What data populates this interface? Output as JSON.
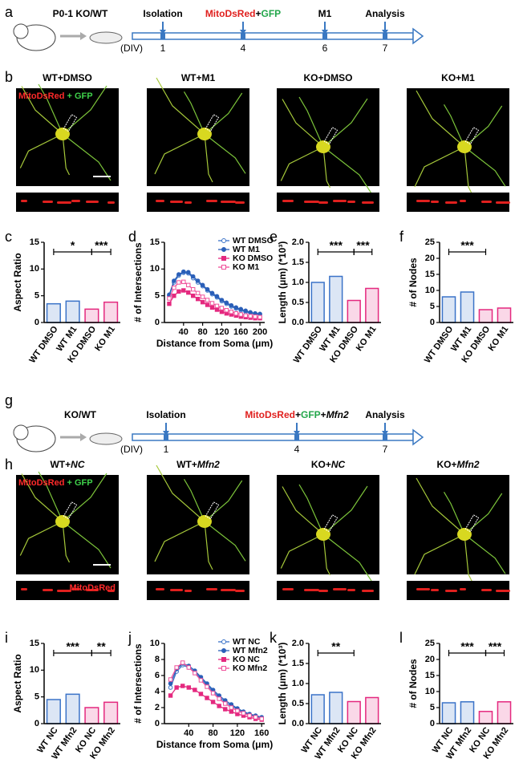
{
  "panel_labels": [
    "a",
    "b",
    "c",
    "d",
    "e",
    "f",
    "g",
    "h",
    "i",
    "j",
    "k",
    "l"
  ],
  "timeline_a": {
    "animal": "P0-1 KO/WT",
    "unit": "(DIV)",
    "events": [
      {
        "parts": [
          {
            "text": "Isolation",
            "color": "#000000"
          }
        ],
        "day": "1"
      },
      {
        "parts": [
          {
            "text": "MitoDsRed",
            "color": "#e0201e"
          },
          {
            "text": "+",
            "color": "#000000"
          },
          {
            "text": "GFP",
            "color": "#22a64a"
          }
        ],
        "day": "4"
      },
      {
        "parts": [
          {
            "text": "M1",
            "color": "#000000"
          }
        ],
        "day": "6"
      },
      {
        "parts": [
          {
            "text": "Analysis",
            "color": "#000000"
          }
        ],
        "day": "7"
      }
    ]
  },
  "timeline_g": {
    "animal": "KO/WT",
    "unit": "(DIV)",
    "events": [
      {
        "parts": [
          {
            "text": "Isolation",
            "color": "#000000"
          }
        ],
        "day": "1"
      },
      {
        "parts": [
          {
            "text": "MitoDsRed",
            "color": "#e0201e"
          },
          {
            "text": "+",
            "color": "#000000"
          },
          {
            "text": "GFP",
            "color": "#22a64a"
          },
          {
            "text": "+",
            "color": "#000000"
          },
          {
            "text": "Mfn2",
            "color": "#000000",
            "italic": true
          }
        ],
        "day": "4"
      },
      {
        "parts": [
          {
            "text": "Analysis",
            "color": "#000000"
          }
        ],
        "day": "7"
      }
    ]
  },
  "images_b": {
    "conditions": [
      [
        {
          "text": "WT+DMSO"
        }
      ],
      [
        {
          "text": "WT+M1"
        }
      ],
      [
        {
          "text": "KO+DMSO"
        }
      ],
      [
        {
          "text": "KO+M1"
        }
      ]
    ],
    "overlay": [
      {
        "text": "MitoDsRed",
        "color": "#ff2a2a"
      },
      {
        "text": " + GFP",
        "color": "#3fd14a"
      }
    ]
  },
  "images_h": {
    "conditions": [
      [
        {
          "text": "WT+"
        },
        {
          "text": "NC",
          "italic": true
        }
      ],
      [
        {
          "text": "WT+"
        },
        {
          "text": "Mfn2",
          "italic": true
        }
      ],
      [
        {
          "text": "KO+"
        },
        {
          "text": "NC",
          "italic": true
        }
      ],
      [
        {
          "text": "KO+"
        },
        {
          "text": "Mfn2",
          "italic": true
        }
      ]
    ],
    "overlay": [
      {
        "text": "MitoDsRed",
        "color": "#ff2a2a"
      },
      {
        "text": " + GFP",
        "color": "#3fd14a"
      }
    ],
    "strip_label": "MitoDsRed"
  },
  "chart_data": [
    {
      "type": "bar",
      "ylabel": "Aspect Ratio",
      "categories": [
        "WT DMSO",
        "WT M1",
        "KO DMSO",
        "KO M1"
      ],
      "values": [
        3.5,
        4.0,
        2.5,
        3.8
      ],
      "colors": [
        "#3b73c8",
        "#3b73c8",
        "#e4297f",
        "#e4297f"
      ],
      "ylim": [
        0,
        15
      ],
      "yticks": [
        0,
        5,
        10,
        15
      ],
      "significance": [
        {
          "from": 0,
          "to": 2,
          "label": "*"
        },
        {
          "from": 2,
          "to": 3,
          "label": "***"
        }
      ]
    },
    {
      "type": "line",
      "ylabel": "# of Intersections",
      "xlabel": "Distance from Soma (μm)",
      "x": [
        10,
        20,
        30,
        40,
        50,
        60,
        70,
        80,
        90,
        100,
        110,
        120,
        130,
        140,
        150,
        160,
        170,
        180,
        190,
        200
      ],
      "xlim": [
        0,
        210
      ],
      "xticks": [
        40,
        80,
        120,
        160,
        200
      ],
      "ylim": [
        0,
        15
      ],
      "yticks": [
        0,
        5,
        10,
        15
      ],
      "series": [
        {
          "name": "WT DMSO",
          "color": "#3b73c8",
          "values": [
            5.0,
            7.5,
            8.8,
            9.3,
            9.2,
            8.3,
            7.5,
            6.8,
            6.0,
            5.3,
            4.7,
            4.0,
            3.5,
            3.0,
            2.6,
            2.3,
            2.0,
            1.8,
            1.6,
            1.5
          ]
        },
        {
          "name": "WT M1",
          "color": "#2a5fb8",
          "values": [
            5.2,
            7.8,
            9.0,
            9.5,
            9.4,
            8.6,
            7.8,
            7.0,
            6.2,
            5.5,
            4.9,
            4.2,
            3.7,
            3.2,
            2.8,
            2.5,
            2.2,
            1.9,
            1.7,
            1.6
          ]
        },
        {
          "name": "KO DMSO",
          "color": "#e4297f",
          "values": [
            3.5,
            5.0,
            5.8,
            6.0,
            5.6,
            5.0,
            4.4,
            3.8,
            3.3,
            2.8,
            2.4,
            2.0,
            1.7,
            1.5,
            1.3,
            1.1,
            1.0,
            0.9,
            0.8,
            0.8
          ]
        },
        {
          "name": "KO M1",
          "color": "#f0509a",
          "values": [
            4.5,
            6.5,
            7.5,
            7.6,
            7.0,
            6.2,
            5.5,
            4.8,
            4.2,
            3.6,
            3.1,
            2.7,
            2.3,
            2.0,
            1.7,
            1.5,
            1.3,
            1.2,
            1.1,
            1.0
          ]
        }
      ]
    },
    {
      "type": "bar",
      "ylabel": "Length (μm) (*10³)",
      "categories": [
        "WT DMSO",
        "WT M1",
        "KO DMSO",
        "KO M1"
      ],
      "values": [
        1.0,
        1.15,
        0.55,
        0.85
      ],
      "colors": [
        "#3b73c8",
        "#3b73c8",
        "#e4297f",
        "#e4297f"
      ],
      "ylim": [
        0,
        2
      ],
      "yticks": [
        {
          "value": 0,
          "label": "0.0"
        },
        0.5,
        {
          "value": 1,
          "label": "1.0"
        },
        1.5,
        {
          "value": 2,
          "label": "2.0"
        }
      ],
      "significance": [
        {
          "from": 0,
          "to": 2,
          "label": "***"
        },
        {
          "from": 2,
          "to": 3,
          "label": "***"
        }
      ]
    },
    {
      "type": "bar",
      "ylabel": "# of Nodes",
      "categories": [
        "WT DMSO",
        "WT M1",
        "KO DMSO",
        "KO M1"
      ],
      "values": [
        8,
        9.5,
        4,
        4.5
      ],
      "colors": [
        "#3b73c8",
        "#3b73c8",
        "#e4297f",
        "#e4297f"
      ],
      "ylim": [
        0,
        25
      ],
      "yticks": [
        0,
        5,
        10,
        15,
        20,
        25
      ],
      "significance": [
        {
          "from": 0,
          "to": 2,
          "label": "***"
        }
      ]
    },
    {
      "type": "bar",
      "ylabel": "Aspect Ratio",
      "categories": [
        "WT NC",
        "WT Mfn2",
        "KO NC",
        "KO Mfn2"
      ],
      "values": [
        4.5,
        5.5,
        3.0,
        4.0
      ],
      "colors": [
        "#3b73c8",
        "#3b73c8",
        "#e4297f",
        "#e4297f"
      ],
      "ylim": [
        0,
        15
      ],
      "yticks": [
        0,
        5,
        10,
        15
      ],
      "significance": [
        {
          "from": 0,
          "to": 2,
          "label": "***"
        },
        {
          "from": 2,
          "to": 3,
          "label": "**"
        }
      ]
    },
    {
      "type": "line",
      "ylabel": "# of Intersections",
      "xlabel": "Distance from Soma (μm)",
      "x": [
        10,
        20,
        30,
        40,
        50,
        60,
        70,
        80,
        90,
        100,
        110,
        120,
        130,
        140,
        150,
        160
      ],
      "xlim": [
        0,
        165
      ],
      "xticks": [
        40,
        80,
        120,
        160
      ],
      "ylim": [
        0,
        10
      ],
      "yticks": [
        0,
        2,
        4,
        6,
        8,
        10
      ],
      "series": [
        {
          "name": "WT NC",
          "color": "#3b73c8",
          "values": [
            4.5,
            6.5,
            7.3,
            7.0,
            6.4,
            5.6,
            4.8,
            4.0,
            3.3,
            2.7,
            2.2,
            1.8,
            1.4,
            1.1,
            0.9,
            0.7
          ]
        },
        {
          "name": "WT Mfn2",
          "color": "#2a5fb8",
          "values": [
            5.0,
            6.8,
            7.5,
            7.2,
            6.6,
            5.8,
            5.0,
            4.2,
            3.5,
            2.9,
            2.4,
            1.9,
            1.5,
            1.2,
            1.0,
            0.8
          ]
        },
        {
          "name": "KO NC",
          "color": "#e4297f",
          "values": [
            3.5,
            4.5,
            4.7,
            4.5,
            4.2,
            3.7,
            3.2,
            2.7,
            2.2,
            1.8,
            1.5,
            1.2,
            1.0,
            0.8,
            0.6,
            0.5
          ]
        },
        {
          "name": "KO Mfn2",
          "color": "#f0509a",
          "values": [
            5.5,
            7.0,
            7.6,
            7.0,
            6.3,
            5.4,
            4.6,
            3.8,
            3.1,
            2.5,
            2.0,
            1.6,
            1.3,
            1.0,
            0.8,
            0.6
          ]
        }
      ]
    },
    {
      "type": "bar",
      "ylabel": "Length (μm) (*10³)",
      "categories": [
        "WT NC",
        "WT Mfn2",
        "KO NC",
        "KO Mfn2"
      ],
      "values": [
        0.72,
        0.78,
        0.55,
        0.65
      ],
      "colors": [
        "#3b73c8",
        "#3b73c8",
        "#e4297f",
        "#e4297f"
      ],
      "ylim": [
        0,
        2
      ],
      "yticks": [
        {
          "value": 0,
          "label": "0.0"
        },
        0.5,
        {
          "value": 1,
          "label": "1.0"
        },
        1.5,
        {
          "value": 2,
          "label": "2.0"
        }
      ],
      "significance": [
        {
          "from": 0,
          "to": 2,
          "label": "**"
        }
      ]
    },
    {
      "type": "bar",
      "ylabel": "# of Nodes",
      "categories": [
        "WT NC",
        "WT Mfn2",
        "KO NC",
        "KO Mfn2"
      ],
      "values": [
        6.5,
        6.8,
        3.8,
        6.8
      ],
      "colors": [
        "#3b73c8",
        "#3b73c8",
        "#e4297f",
        "#e4297f"
      ],
      "ylim": [
        0,
        25
      ],
      "yticks": [
        0,
        5,
        10,
        15,
        20,
        25
      ],
      "significance": [
        {
          "from": 0,
          "to": 2,
          "label": "***"
        },
        {
          "from": 2,
          "to": 3,
          "label": "***"
        }
      ]
    }
  ]
}
